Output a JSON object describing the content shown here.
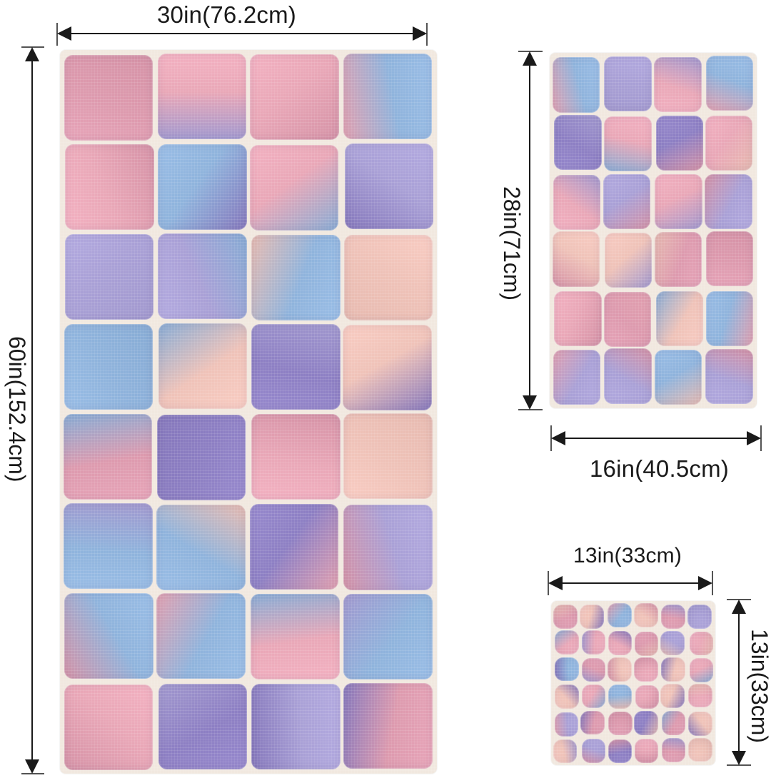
{
  "dimensions": {
    "bath_width": "30in(76.2cm)",
    "bath_height": "60in(152.4cm)",
    "hand_width": "16in(40.5cm)",
    "hand_height": "28in(71cm)",
    "wash_width": "13in(33cm)",
    "wash_height": "13in(33cm)"
  },
  "colors": {
    "pink": "#e9a7b7",
    "blue": "#8fb3dc",
    "lavender": "#a9a0d6",
    "violet": "#8d7fc3",
    "peach": "#efc2b8",
    "blush": "#dd9aae",
    "grout": "#f1e8df"
  }
}
